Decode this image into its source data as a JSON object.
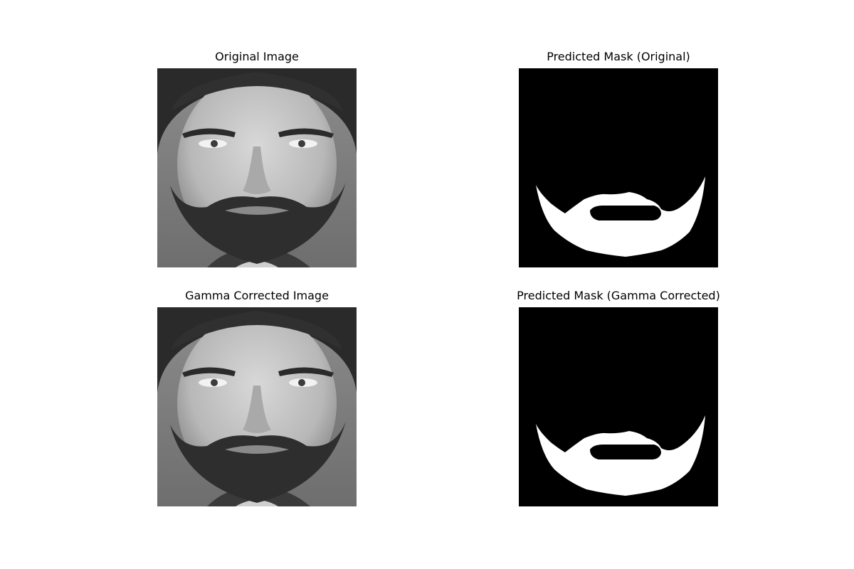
{
  "figure": {
    "panels": [
      {
        "title": "Original Image",
        "kind": "photo"
      },
      {
        "title": "Predicted Mask (Original)",
        "kind": "mask"
      },
      {
        "title": "Gamma Corrected Image",
        "kind": "photo"
      },
      {
        "title": "Predicted Mask (Gamma Corrected)",
        "kind": "mask"
      }
    ]
  },
  "colors": {
    "mask_bg": "#000000",
    "mask_fg": "#ffffff",
    "photo_tone": "grayscale"
  }
}
